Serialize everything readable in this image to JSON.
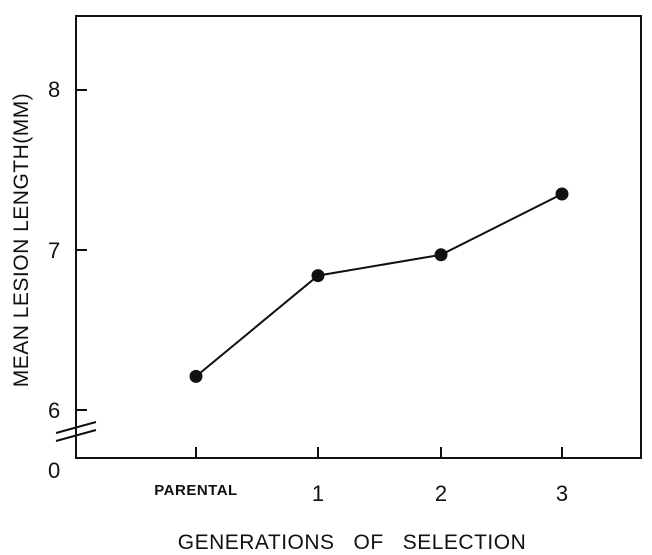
{
  "chart_data": {
    "type": "line",
    "title": "",
    "xlabel": "GENERATIONS   OF   SELECTION",
    "ylabel": "MEAN LESION LENGTH(MM)",
    "categories": [
      "PARENTAL",
      "1",
      "2",
      "3"
    ],
    "series": [
      {
        "values": [
          6.21,
          6.84,
          6.97,
          7.35
        ]
      }
    ],
    "y_ticks": [
      "6",
      "7",
      "8"
    ],
    "y_origin_label": "0",
    "y_axis_break": true,
    "ylim": [
      5.7,
      8.5
    ],
    "grid": false
  }
}
